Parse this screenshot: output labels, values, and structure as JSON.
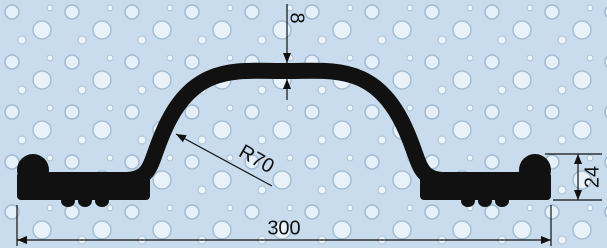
{
  "dimensions": [
    {
      "label": "8"
    },
    {
      "label": "R70"
    },
    {
      "label": "24"
    },
    {
      "label": "300"
    }
  ]
}
